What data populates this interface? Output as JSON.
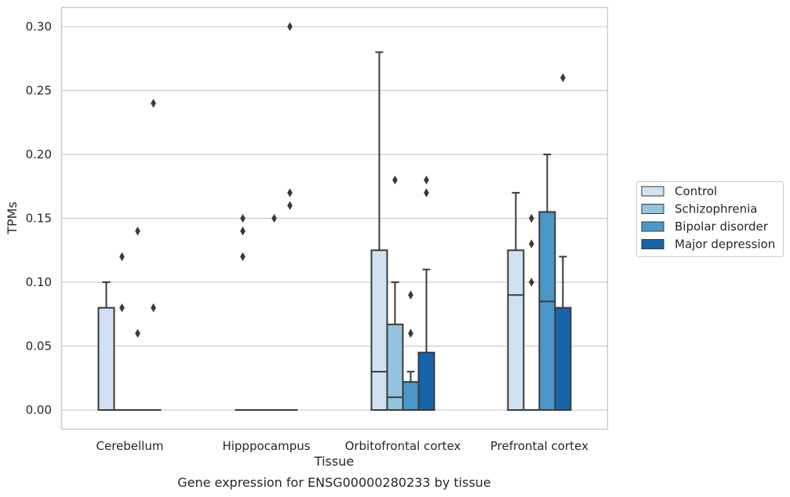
{
  "chart_data": {
    "type": "boxplot",
    "title": "Gene expression for ENSG00000280233 by tissue",
    "xlabel": "Tissue",
    "ylabel": "TPMs",
    "ylim": [
      -0.015,
      0.315
    ],
    "yticks": [
      0.0,
      0.05,
      0.1,
      0.15,
      0.2,
      0.25,
      0.3
    ],
    "ytick_labels": [
      "0.00",
      "0.05",
      "0.10",
      "0.15",
      "0.20",
      "0.25",
      "0.30"
    ],
    "grid": "horizontal",
    "legend_position": "right",
    "categories": [
      "Cerebellum",
      "Hipppocampus",
      "Orbitofrontal cortex",
      "Prefrontal cortex"
    ],
    "series": [
      {
        "name": "Control",
        "color": "#d0e1f2",
        "boxes": [
          {
            "q1": 0.0,
            "median": 0.0,
            "q3": 0.08,
            "whisker_low": 0.0,
            "whisker_high": 0.1,
            "outliers": []
          },
          {
            "q1": 0.0,
            "median": 0.0,
            "q3": 0.0,
            "whisker_low": 0.0,
            "whisker_high": 0.0,
            "outliers": [
              0.12,
              0.14,
              0.15
            ]
          },
          {
            "q1": 0.0,
            "median": 0.03,
            "q3": 0.125,
            "whisker_low": 0.0,
            "whisker_high": 0.28,
            "outliers": []
          },
          {
            "q1": 0.0,
            "median": 0.09,
            "q3": 0.125,
            "whisker_low": 0.0,
            "whisker_high": 0.17,
            "outliers": []
          }
        ]
      },
      {
        "name": "Schizophrenia",
        "color": "#94c4df",
        "boxes": [
          {
            "q1": 0.0,
            "median": 0.0,
            "q3": 0.0,
            "whisker_low": 0.0,
            "whisker_high": 0.0,
            "outliers": [
              0.08,
              0.12
            ]
          },
          {
            "q1": 0.0,
            "median": 0.0,
            "q3": 0.0,
            "whisker_low": 0.0,
            "whisker_high": 0.0,
            "outliers": []
          },
          {
            "q1": 0.0,
            "median": 0.01,
            "q3": 0.067,
            "whisker_low": 0.0,
            "whisker_high": 0.1,
            "outliers": [
              0.18
            ]
          },
          {
            "q1": 0.0,
            "median": 0.0,
            "q3": 0.0,
            "whisker_low": 0.0,
            "whisker_high": 0.0,
            "outliers": [
              0.1,
              0.13,
              0.15
            ]
          }
        ]
      },
      {
        "name": "Bipolar disorder",
        "color": "#4a98c9",
        "boxes": [
          {
            "q1": 0.0,
            "median": 0.0,
            "q3": 0.0,
            "whisker_low": 0.0,
            "whisker_high": 0.0,
            "outliers": [
              0.06,
              0.14
            ]
          },
          {
            "q1": 0.0,
            "median": 0.0,
            "q3": 0.0,
            "whisker_low": 0.0,
            "whisker_high": 0.0,
            "outliers": [
              0.15
            ]
          },
          {
            "q1": 0.0,
            "median": 0.0,
            "q3": 0.022,
            "whisker_low": 0.0,
            "whisker_high": 0.03,
            "outliers": [
              0.06,
              0.09
            ]
          },
          {
            "q1": 0.0,
            "median": 0.085,
            "q3": 0.155,
            "whisker_low": 0.0,
            "whisker_high": 0.2,
            "outliers": []
          }
        ]
      },
      {
        "name": "Major depression",
        "color": "#1764ab",
        "boxes": [
          {
            "q1": 0.0,
            "median": 0.0,
            "q3": 0.0,
            "whisker_low": 0.0,
            "whisker_high": 0.0,
            "outliers": [
              0.08,
              0.24
            ]
          },
          {
            "q1": 0.0,
            "median": 0.0,
            "q3": 0.0,
            "whisker_low": 0.0,
            "whisker_high": 0.0,
            "outliers": [
              0.16,
              0.17,
              0.3
            ]
          },
          {
            "q1": 0.0,
            "median": 0.0,
            "q3": 0.045,
            "whisker_low": 0.0,
            "whisker_high": 0.11,
            "outliers": [
              0.17,
              0.18
            ]
          },
          {
            "q1": 0.0,
            "median": 0.0,
            "q3": 0.08,
            "whisker_low": 0.0,
            "whisker_high": 0.12,
            "outliers": [
              0.26
            ]
          }
        ]
      }
    ],
    "colors": {
      "line": "#3a3a3a",
      "grid": "#cccccc",
      "frame": "#cccccc",
      "text": "#262626"
    }
  }
}
